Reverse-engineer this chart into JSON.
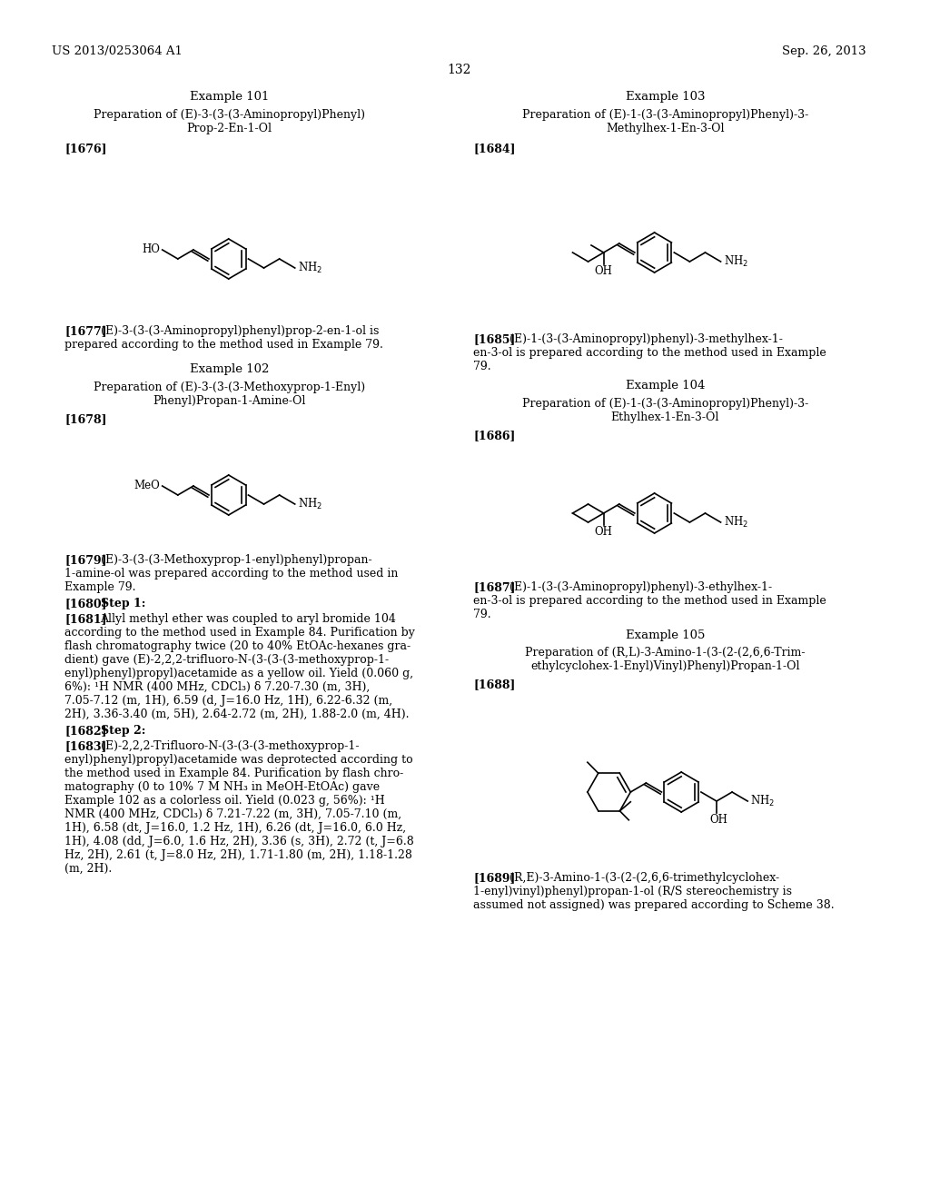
{
  "bg_color": "#ffffff",
  "header_left": "US 2013/0253064 A1",
  "header_right": "Sep. 26, 2013",
  "page_number": "132"
}
